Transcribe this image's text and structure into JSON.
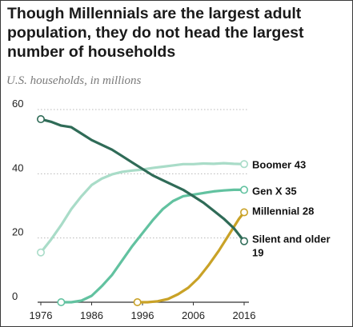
{
  "title_lines": [
    "Though Millennials are the largest adult",
    "population, they do not head the largest",
    "number of households"
  ],
  "subtitle": "U.S. households, in millions",
  "chart_data": {
    "type": "line",
    "x_ticks": [
      "1976",
      "1986",
      "1996",
      "2006",
      "2016"
    ],
    "y_ticks": [
      "0",
      "20",
      "40",
      "60"
    ],
    "xlim": [
      1976,
      2016
    ],
    "ylim": [
      0,
      60
    ],
    "grid": "horizontal dotted",
    "series": [
      {
        "name": "Boomer",
        "end_label": [
          "Boomer 43"
        ],
        "color": "#a9dcc8",
        "x": [
          1976,
          1978,
          1980,
          1982,
          1984,
          1986,
          1988,
          1990,
          1992,
          1994,
          1996,
          1998,
          2000,
          2002,
          2004,
          2006,
          2008,
          2010,
          2012,
          2014,
          2016
        ],
        "values": [
          15.5,
          19.5,
          24,
          29,
          33,
          36.5,
          38.5,
          39.8,
          40.6,
          41,
          41.3,
          41.8,
          42.2,
          42.6,
          43,
          43,
          43.2,
          43.1,
          43.3,
          43.1,
          43
        ]
      },
      {
        "name": "Gen X",
        "end_label": [
          "Gen X 35"
        ],
        "color": "#62c2a0",
        "x": [
          1980,
          1982,
          1984,
          1986,
          1988,
          1990,
          1992,
          1994,
          1996,
          1998,
          2000,
          2002,
          2004,
          2006,
          2008,
          2010,
          2012,
          2014,
          2016
        ],
        "values": [
          0,
          0,
          0.5,
          2,
          5,
          8.5,
          13,
          17.5,
          21.5,
          25.5,
          29,
          31.5,
          33,
          33.5,
          34,
          34.5,
          34.8,
          35,
          35
        ]
      },
      {
        "name": "Millennial",
        "end_label": [
          "Millennial 28"
        ],
        "color": "#c9a227",
        "x": [
          1995,
          1997,
          1999,
          2001,
          2003,
          2005,
          2007,
          2009,
          2011,
          2013,
          2015,
          2016
        ],
        "values": [
          0,
          0,
          0.3,
          1,
          2.5,
          4.5,
          7.5,
          11.5,
          16,
          21,
          26,
          28
        ]
      },
      {
        "name": "Silent and older",
        "end_label": [
          "Silent and older",
          "19"
        ],
        "color": "#2f6b57",
        "x": [
          1976,
          1978,
          1980,
          1982,
          1984,
          1986,
          1988,
          1990,
          1992,
          1994,
          1996,
          1998,
          2000,
          2002,
          2004,
          2006,
          2008,
          2010,
          2012,
          2014,
          2016
        ],
        "values": [
          57,
          56.2,
          55,
          54.5,
          52.5,
          50.5,
          49,
          47.5,
          45.5,
          43.5,
          41.5,
          39.5,
          38,
          36.5,
          35,
          33,
          31,
          28.5,
          26,
          23,
          19
        ]
      }
    ]
  }
}
